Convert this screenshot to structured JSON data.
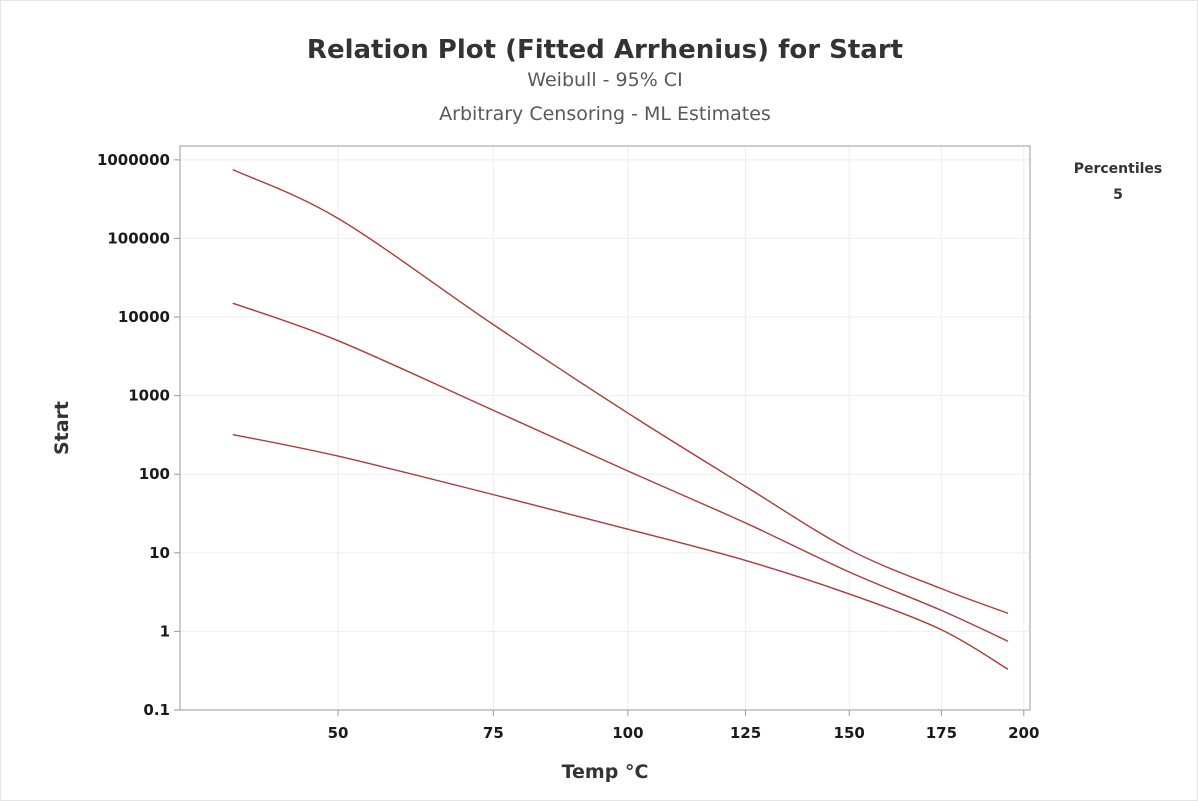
{
  "chart_data": {
    "type": "line",
    "title": "Relation Plot (Fitted Arrhenius) for Start",
    "subtitle_1": "Weibull - 95% CI",
    "subtitle_2": "Arbitrary Censoring - ML Estimates",
    "xlabel": "Temp °C",
    "ylabel": "Start",
    "y_scale": "log",
    "x_scale": "arrhenius",
    "xlim": [
      28,
      202
    ],
    "ylim": [
      0.1,
      1500000
    ],
    "x_ticks": [
      50,
      75,
      100,
      125,
      150,
      175,
      200
    ],
    "x_tick_labels": [
      "50",
      "75",
      "100",
      "125",
      "150",
      "175",
      "200"
    ],
    "y_ticks": [
      0.1,
      1,
      10,
      100,
      1000,
      10000,
      100000,
      1000000
    ],
    "y_tick_labels": [
      "0.1",
      "1",
      "10",
      "100",
      "1000",
      "10000",
      "100000",
      "1000000"
    ],
    "grid": true,
    "legend": {
      "title": "Percentiles",
      "entries": [
        "5"
      ],
      "placement": "top-right"
    },
    "series_color": "#b03a3a",
    "series": [
      {
        "role": "upper-ci",
        "x": [
          35,
          50,
          75,
          100,
          125,
          150,
          175,
          195
        ],
        "y": [
          750000,
          180000,
          8000,
          600,
          70,
          11,
          3.5,
          1.7
        ]
      },
      {
        "role": "percentile-5",
        "x": [
          35,
          50,
          75,
          100,
          125,
          150,
          175,
          195
        ],
        "y": [
          15000,
          5000,
          650,
          110,
          24,
          5.7,
          1.85,
          0.75
        ]
      },
      {
        "role": "lower-ci",
        "x": [
          35,
          50,
          75,
          100,
          125,
          150,
          175,
          195
        ],
        "y": [
          320,
          170,
          55,
          20,
          8,
          3,
          1.05,
          0.33
        ]
      }
    ]
  }
}
